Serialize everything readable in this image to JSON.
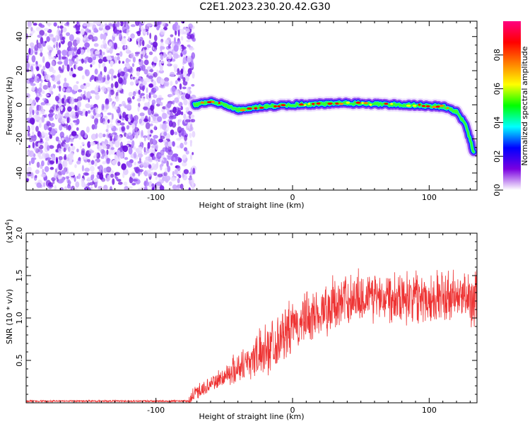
{
  "title": "C2E1.2023.230.20.42.G30",
  "chart_data": [
    {
      "type": "heatmap",
      "xlabel": "Height of straight line (km)",
      "ylabel": "Frequency (Hz)",
      "xlim": [
        -195,
        135
      ],
      "ylim": [
        -50,
        49
      ],
      "x_ticks": [
        -100,
        0,
        100
      ],
      "y_ticks": [
        -40,
        -20,
        0,
        20,
        40
      ],
      "colorbar": {
        "label": "Normalized spectral amplitude",
        "range": [
          0,
          1
        ],
        "ticks": [
          "0.0",
          "0.2",
          "0.4",
          "0.6",
          "0.8"
        ],
        "colors": [
          "#ffffff",
          "#7a00e0",
          "#0000ff",
          "#00ffff",
          "#00ff00",
          "#ffff00",
          "#ff7f00",
          "#ff0000",
          "#ff0080"
        ]
      },
      "noise_region": {
        "x_start": -195,
        "x_end": -72
      },
      "ridge": [
        {
          "x": -72,
          "y": 0
        },
        {
          "x": -60,
          "y": 2
        },
        {
          "x": -50,
          "y": 0
        },
        {
          "x": -40,
          "y": -3
        },
        {
          "x": -20,
          "y": -1
        },
        {
          "x": 0,
          "y": 0
        },
        {
          "x": 40,
          "y": 1
        },
        {
          "x": 80,
          "y": 0
        },
        {
          "x": 110,
          "y": -1
        },
        {
          "x": 120,
          "y": -4
        },
        {
          "x": 127,
          "y": -12
        },
        {
          "x": 133,
          "y": -29
        }
      ]
    },
    {
      "type": "line",
      "xlabel": "Height of straight line (km)",
      "ylabel": "SNR (10 * v/v)",
      "y_multiplier": "(x10",
      "y_multiplier_exp": "4",
      "y_multiplier_close": ")",
      "xlim": [
        -195,
        135
      ],
      "ylim": [
        0,
        2.0
      ],
      "x_ticks": [
        -100,
        0,
        100
      ],
      "y_ticks": [
        "0.5",
        "1.0",
        "1.5",
        "2.0"
      ],
      "color": "#ee3333",
      "trend": [
        {
          "x": -195,
          "y": 0.02
        },
        {
          "x": -76,
          "y": 0.02
        },
        {
          "x": -70,
          "y": 0.12
        },
        {
          "x": -50,
          "y": 0.3
        },
        {
          "x": -25,
          "y": 0.55
        },
        {
          "x": 0,
          "y": 0.85
        },
        {
          "x": 20,
          "y": 1.05
        },
        {
          "x": 45,
          "y": 1.22
        },
        {
          "x": 70,
          "y": 1.25
        },
        {
          "x": 100,
          "y": 1.22
        },
        {
          "x": 135,
          "y": 1.2
        }
      ]
    }
  ]
}
